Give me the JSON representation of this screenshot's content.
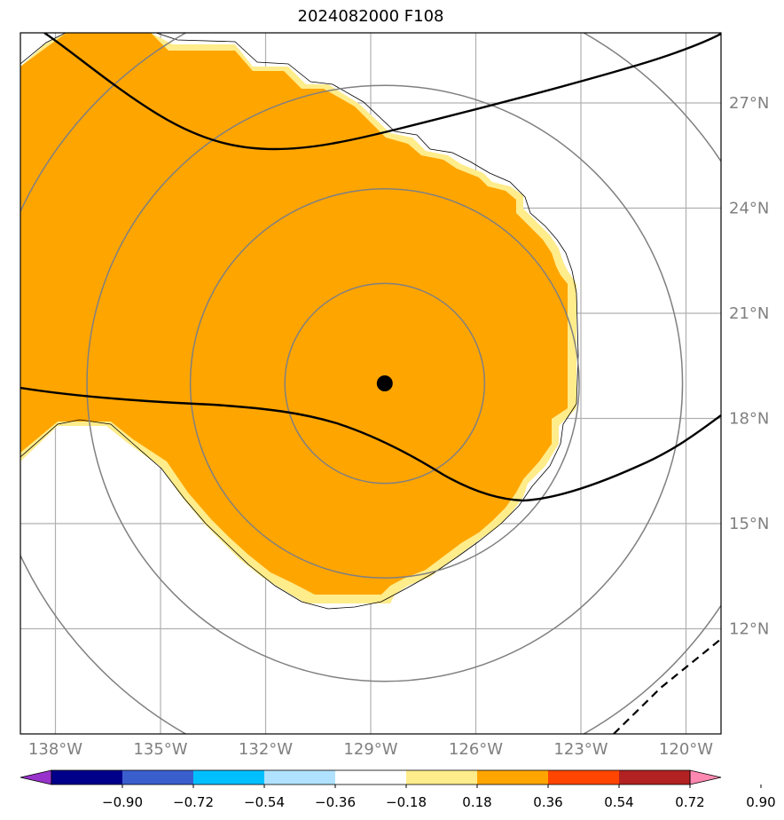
{
  "title": "2024082000 F108",
  "map": {
    "lon_range": [
      -139,
      -119
    ],
    "lat_range": [
      9,
      29
    ],
    "lon_gridlines": [
      -138,
      -135,
      -132,
      -129,
      -126,
      -123,
      -120
    ],
    "lat_gridlines": [
      12,
      15,
      18,
      21,
      24,
      27
    ],
    "lon_labels": [
      "138°W",
      "135°W",
      "132°W",
      "129°W",
      "126°W",
      "123°W",
      "120°W"
    ],
    "lat_labels": [
      "12°N",
      "15°N",
      "18°N",
      "21°N",
      "24°N",
      "27°N"
    ],
    "center": {
      "lon": -128.6,
      "lat": 19.0
    },
    "range_ring_radii_deg": [
      2.85,
      5.55,
      8.5,
      11.5
    ],
    "fill_colors": {
      "outer": "#ffec8b",
      "inner": "#ffa500"
    },
    "colors": {
      "grid": "#b0b0b0",
      "rings": "#808080",
      "contour": "#000000"
    }
  },
  "colorbar": {
    "levels": [
      -0.9,
      -0.72,
      -0.54,
      -0.36,
      -0.18,
      0.18,
      0.36,
      0.54,
      0.72,
      0.9
    ],
    "labels": [
      "−0.90",
      "−0.72",
      "−0.54",
      "−0.36",
      "−0.18",
      "0.18",
      "0.36",
      "0.54",
      "0.72",
      "0.90"
    ],
    "colors": [
      "#9932cc",
      "#00008b",
      "#3a5fcd",
      "#00bfff",
      "#b0e2ff",
      "#ffffff",
      "#ffec8b",
      "#ffa500",
      "#ff4500",
      "#b22222",
      "#ff88b0"
    ]
  }
}
